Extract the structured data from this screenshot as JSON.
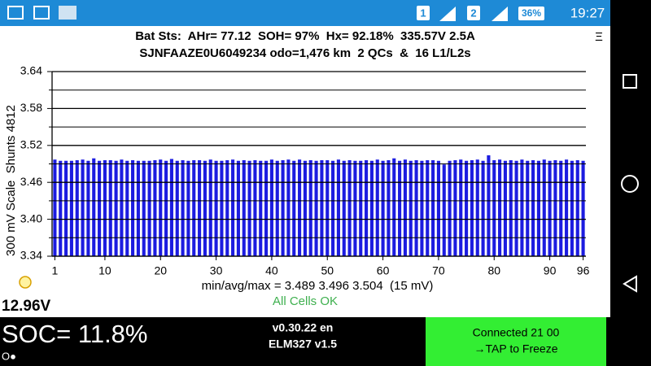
{
  "status_bar": {
    "sim1": "1",
    "sim2": "2",
    "battery": "36%",
    "time": "19:27"
  },
  "header": {
    "line1": "Bat Sts:  AHr= 77.12  SOH= 97%  Hx= 92.18%  335.57V 2.5A",
    "line2": "SJNFAAZE0U6049234 odo=1,476 km  2 QCs  &  16 L1/L2s",
    "menu": "Ξ"
  },
  "chart_data": {
    "type": "bar",
    "y_label": "300 mV Scale  Shunts 4812",
    "x": [
      1,
      2,
      3,
      4,
      5,
      6,
      7,
      8,
      9,
      10,
      11,
      12,
      13,
      14,
      15,
      16,
      17,
      18,
      19,
      20,
      21,
      22,
      23,
      24,
      25,
      26,
      27,
      28,
      29,
      30,
      31,
      32,
      33,
      34,
      35,
      36,
      37,
      38,
      39,
      40,
      41,
      42,
      43,
      44,
      45,
      46,
      47,
      48,
      49,
      50,
      51,
      52,
      53,
      54,
      55,
      56,
      57,
      58,
      59,
      60,
      61,
      62,
      63,
      64,
      65,
      66,
      67,
      68,
      69,
      70,
      71,
      72,
      73,
      74,
      75,
      76,
      77,
      78,
      79,
      80,
      81,
      82,
      83,
      84,
      85,
      86,
      87,
      88,
      89,
      90,
      91,
      92,
      93,
      94,
      95,
      96
    ],
    "values": [
      3.497,
      3.495,
      3.495,
      3.495,
      3.496,
      3.497,
      3.495,
      3.499,
      3.495,
      3.496,
      3.496,
      3.495,
      3.497,
      3.495,
      3.496,
      3.495,
      3.495,
      3.495,
      3.496,
      3.497,
      3.495,
      3.498,
      3.495,
      3.496,
      3.495,
      3.496,
      3.496,
      3.495,
      3.497,
      3.495,
      3.495,
      3.496,
      3.497,
      3.495,
      3.496,
      3.495,
      3.496,
      3.495,
      3.495,
      3.497,
      3.495,
      3.496,
      3.497,
      3.495,
      3.497,
      3.495,
      3.496,
      3.495,
      3.496,
      3.496,
      3.495,
      3.497,
      3.495,
      3.496,
      3.495,
      3.495,
      3.496,
      3.495,
      3.497,
      3.495,
      3.496,
      3.499,
      3.495,
      3.497,
      3.495,
      3.496,
      3.495,
      3.496,
      3.496,
      3.495,
      3.489,
      3.495,
      3.496,
      3.497,
      3.495,
      3.496,
      3.497,
      3.495,
      3.504,
      3.496,
      3.497,
      3.495,
      3.496,
      3.495,
      3.497,
      3.495,
      3.496,
      3.495,
      3.497,
      3.495,
      3.496,
      3.495,
      3.497,
      3.495,
      3.496,
      3.495
    ],
    "color": "#1c1ce0",
    "ylim": [
      3.34,
      3.64
    ],
    "yticks": [
      3.34,
      {
        "value": 3.4,
        "label": "3.40"
      },
      3.46,
      3.52,
      3.58,
      3.64
    ],
    "minor_yticks": [
      3.37,
      3.43,
      3.49,
      3.55,
      3.61
    ],
    "xlim": [
      0.5,
      96.5
    ],
    "xticks": [
      1,
      10,
      20,
      30,
      40,
      50,
      60,
      70,
      80,
      90,
      96
    ],
    "grid": true
  },
  "stats": "min/avg/max = 3.489 3.496 3.504  (15 mV)",
  "cell_status": "All Cells OK",
  "voltage": "12.96V",
  "footer": {
    "soc": "SOC= 11.8%",
    "indicator": "O●",
    "version": "v0.30.22 en",
    "adapter": "ELM327 v1.5",
    "connection": "Connected 21 00",
    "tap": "→TAP to Freeze"
  }
}
